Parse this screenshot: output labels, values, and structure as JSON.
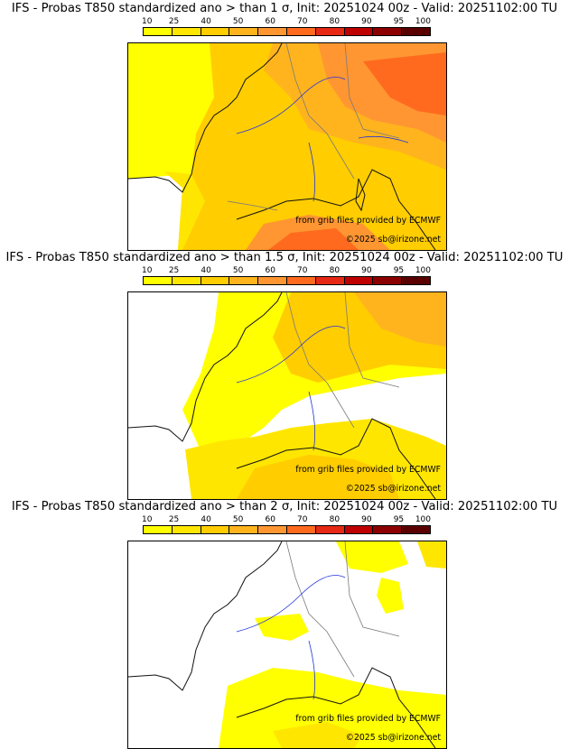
{
  "legend": {
    "ticks": [
      "10",
      "25",
      "40",
      "50",
      "60",
      "70",
      "80",
      "90",
      "95",
      "100"
    ],
    "colors": [
      "#ffff00",
      "#ffe600",
      "#ffcd00",
      "#ffb41e",
      "#ff9632",
      "#ff6a1e",
      "#e62814",
      "#be0000",
      "#8c0000",
      "#5a0000"
    ]
  },
  "panels": [
    {
      "title": "IFS - Probas T850  standardized ano > than 1 σ, Init: 20251024 00z - Valid: 20251102:00 TU",
      "credit_source": "from grib files provided by ECMWF",
      "credit_copyright": "©2025 sb@irizone.net"
    },
    {
      "title": "IFS - Probas T850  standardized ano > than 1.5 σ, Init: 20251024 00z - Valid: 20251102:00 TU",
      "credit_source": "from grib files provided by ECMWF",
      "credit_copyright": "©2025 sb@irizone.net"
    },
    {
      "title": "IFS - Probas T850  standardized ano > than 2 σ, Init: 20251024 00z - Valid: 20251102:00 TU",
      "credit_source": "from grib files provided by ECMWF",
      "credit_copyright": "©2025 sb@irizone.net"
    }
  ],
  "colors": {
    "coast": "#111111",
    "border": "#7a7a7a",
    "river": "#2233dd"
  }
}
